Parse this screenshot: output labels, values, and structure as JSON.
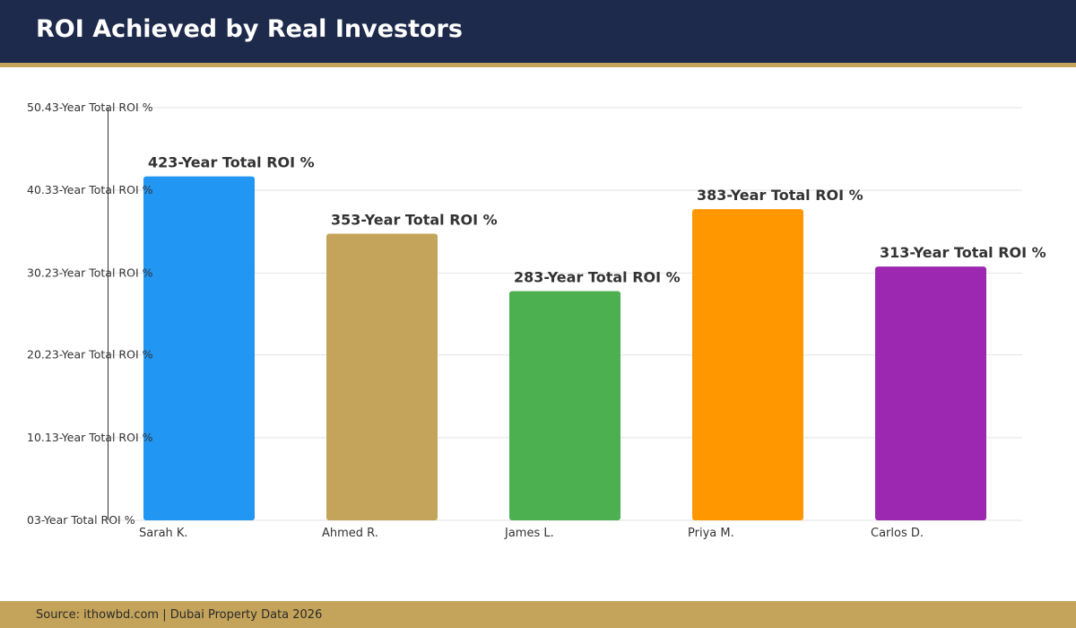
{
  "header": {
    "title": "ROI Achieved by Real Investors"
  },
  "footer": {
    "source": "Source: ithowbd.com | Dubai Property Data 2026"
  },
  "colors": {
    "header_bg": "#1d2a4b",
    "accent_gold": "#c4a35a"
  },
  "chart_data": {
    "type": "bar",
    "title": "ROI Achieved by Real Investors",
    "xlabel": "",
    "ylabel": "",
    "categories": [
      "Sarah K.",
      "Ahmed R.",
      "James L.",
      "Priya M.",
      "Carlos D."
    ],
    "values": [
      42,
      35,
      28,
      38,
      31
    ],
    "value_labels": [
      "423-Year Total ROI %",
      "353-Year Total ROI %",
      "283-Year Total ROI %",
      "383-Year Total ROI %",
      "313-Year Total ROI %"
    ],
    "bar_colors": [
      "#2196f3",
      "#c4a35a",
      "#4caf50",
      "#ff9800",
      "#9c27b0"
    ],
    "ylim": [
      0,
      50.4
    ],
    "y_ticks": [
      0,
      10.1,
      20.2,
      30.2,
      40.3,
      50.4
    ],
    "y_tick_labels": [
      "03-Year Total ROI %",
      "10.13-Year Total ROI %",
      "20.23-Year Total ROI %",
      "30.23-Year Total ROI %",
      "40.33-Year Total ROI %",
      "50.43-Year Total ROI %"
    ],
    "grid": true,
    "legend": "none"
  }
}
